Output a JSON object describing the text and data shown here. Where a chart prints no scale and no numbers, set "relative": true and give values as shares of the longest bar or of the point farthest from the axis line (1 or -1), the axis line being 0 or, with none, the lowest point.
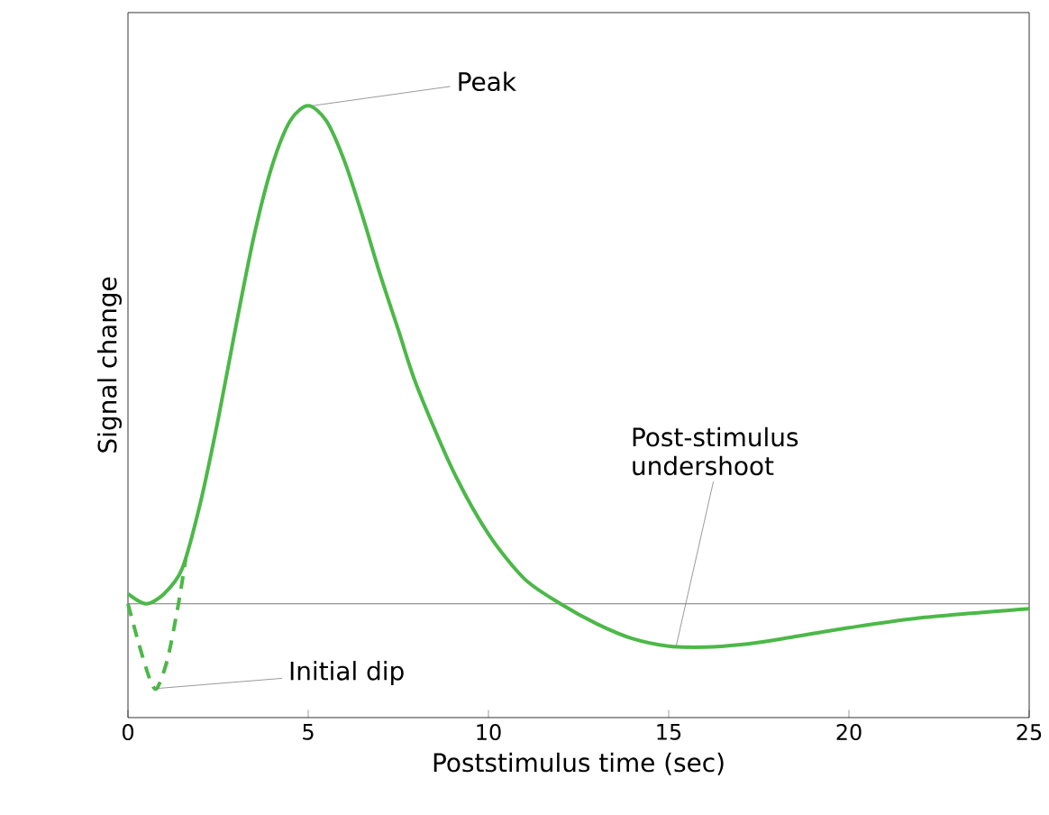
{
  "chart_data": {
    "type": "line",
    "relative": true,
    "xlabel": "Poststimulus time (sec)",
    "ylabel": "Signal change",
    "xlim": [
      0,
      25
    ],
    "xticks": [
      0,
      5,
      10,
      15,
      20,
      25
    ],
    "grid": false,
    "marker": "none",
    "series": [
      {
        "color": "#4cb848",
        "line_style": "solid",
        "x": [
          0,
          0.5,
          1,
          1.5,
          2,
          2.5,
          3,
          3.5,
          4,
          4.5,
          5,
          5.5,
          6,
          6.5,
          7,
          7.5,
          8,
          9,
          10,
          11,
          12,
          13,
          14,
          15,
          16,
          17,
          18,
          20,
          22,
          25
        ],
        "values": [
          0.02,
          0.0,
          0.02,
          0.07,
          0.2,
          0.37,
          0.56,
          0.74,
          0.88,
          0.97,
          1.0,
          0.97,
          0.89,
          0.78,
          0.66,
          0.55,
          0.44,
          0.27,
          0.14,
          0.05,
          0.0,
          -0.04,
          -0.07,
          -0.085,
          -0.087,
          -0.082,
          -0.072,
          -0.048,
          -0.028,
          -0.01
        ]
      },
      {
        "color": "#4cb848",
        "line_style": "dashed",
        "x": [
          0,
          0.3,
          0.6,
          0.8,
          1.1,
          1.4,
          1.6
        ],
        "values": [
          0.0,
          -0.08,
          -0.15,
          -0.17,
          -0.11,
          0.0,
          0.09
        ]
      }
    ],
    "ref_lines": [
      {
        "axis": "y",
        "value": 0,
        "color": "#555555"
      }
    ],
    "annotations": [
      {
        "text": "Peak",
        "x": 5.1,
        "y": 1.0
      },
      {
        "text": "Initial dip",
        "x": 0.8,
        "y": -0.17
      },
      {
        "text": "Post-stimulus undershoot",
        "x": 15.2,
        "y": -0.087
      }
    ]
  }
}
